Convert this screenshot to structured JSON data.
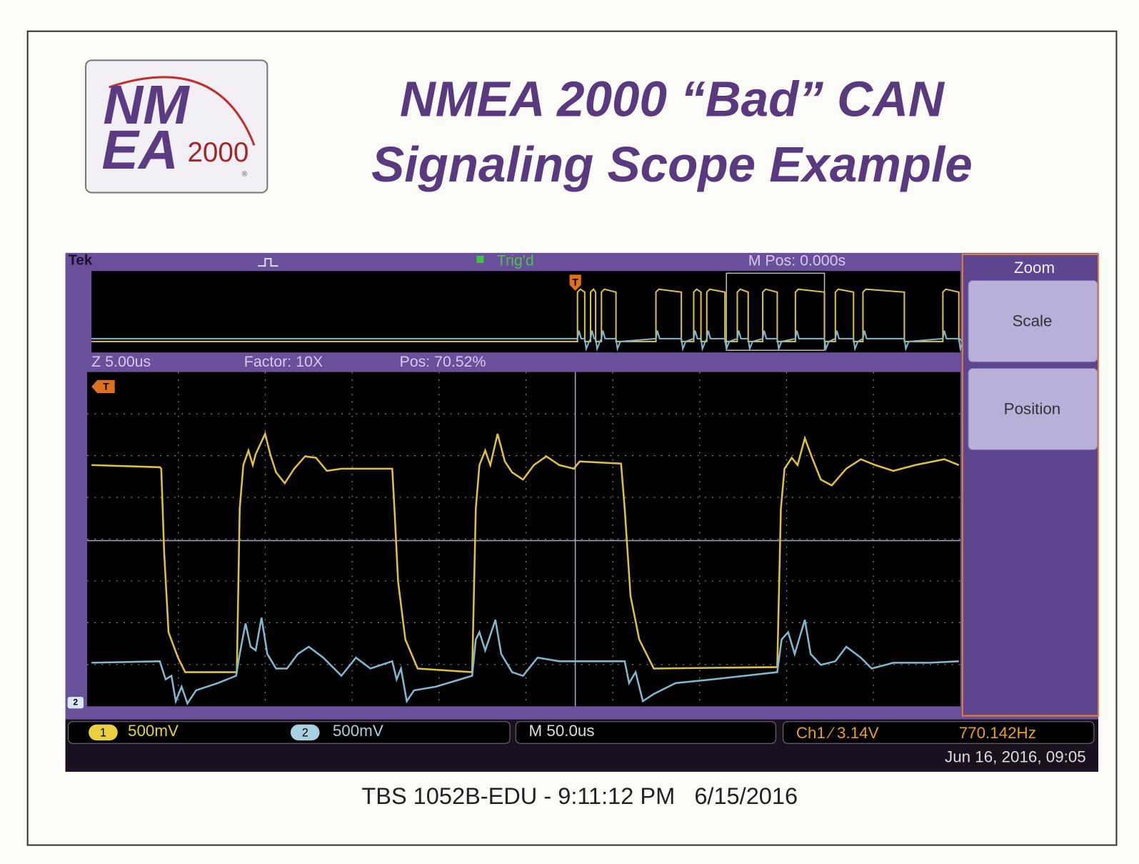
{
  "header": {
    "logo": {
      "top": "NM",
      "bottom": "EA",
      "number": "2000",
      "mark": "®"
    },
    "title_line1": "NMEA 2000 “Bad” CAN",
    "title_line2": "Signaling Scope Example"
  },
  "scope": {
    "brand": "Tek",
    "trigger_status": "Trig'd",
    "main_position": "M Pos: 0.000s",
    "zoom_scale": "Z 5.00us",
    "zoom_factor": "Factor: 10X",
    "zoom_position": "Pos: 70.52%",
    "trigger_marker": "T",
    "ground_marker": "2",
    "menu": {
      "title": "Zoom",
      "buttons": [
        "Scale",
        "Position"
      ]
    },
    "status": {
      "ch1_badge": "1",
      "ch1_scale": "500mV",
      "ch2_badge": "2",
      "ch2_scale": "500mV",
      "timebase": "M 50.0us",
      "trigger": "Ch1 ⁄ 3.14V",
      "frequency": "770.142Hz",
      "datetime": "Jun 16, 2016, 09:05"
    }
  },
  "caption": "TBS 1052B-EDU - 9:11:12 PM   6/15/2016"
}
